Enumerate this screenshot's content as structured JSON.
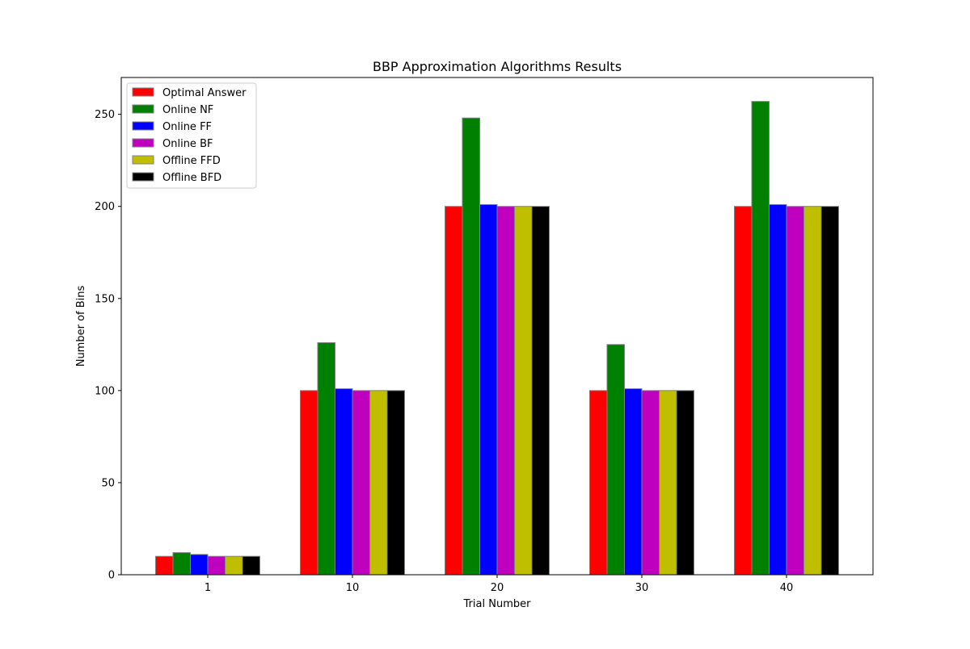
{
  "chart_data": {
    "type": "bar",
    "title": "BBP Approximation Algorithms Results",
    "xlabel": "Trial Number",
    "ylabel": "Number of Bins",
    "categories": [
      "1",
      "10",
      "20",
      "30",
      "40"
    ],
    "ylim": [
      0,
      270
    ],
    "yticks": [
      0,
      50,
      100,
      150,
      200,
      250
    ],
    "grid": false,
    "legend_position": "top-left",
    "series": [
      {
        "name": "Optimal Answer",
        "color": "#ff0000",
        "values": [
          10,
          100,
          200,
          100,
          200
        ]
      },
      {
        "name": "Online NF",
        "color": "#008000",
        "values": [
          12,
          126,
          248,
          125,
          257
        ]
      },
      {
        "name": "Online FF",
        "color": "#0000ff",
        "values": [
          11,
          101,
          201,
          101,
          201
        ]
      },
      {
        "name": "Online BF",
        "color": "#bf00bf",
        "values": [
          10,
          100,
          200,
          100,
          200
        ]
      },
      {
        "name": "Offline FFD",
        "color": "#bfbf00",
        "values": [
          10,
          100,
          200,
          100,
          200
        ]
      },
      {
        "name": "Offline BFD",
        "color": "#000000",
        "values": [
          10,
          100,
          200,
          100,
          200
        ]
      }
    ]
  }
}
